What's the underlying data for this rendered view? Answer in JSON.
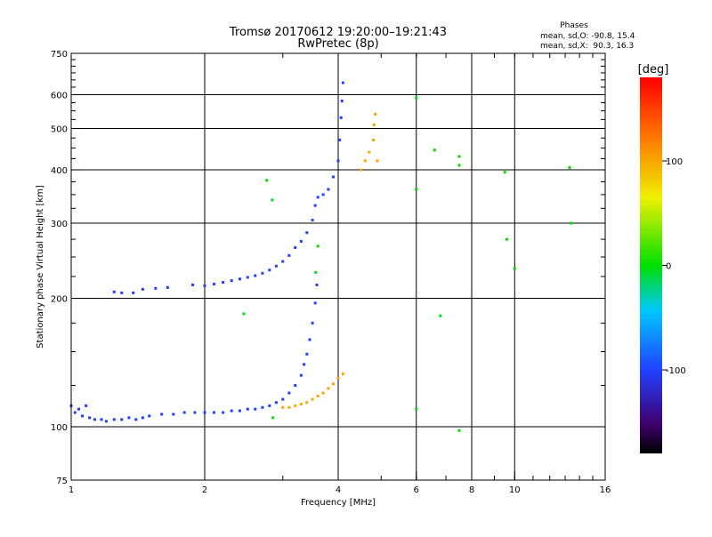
{
  "chart_data": {
    "type": "scatter",
    "title_line1": "Tromsø 20170612 19:20:00–19:21:43",
    "title_line2": "RwPretec (8p)",
    "xlabel": "Frequency [MHz]",
    "ylabel": "Stationary phase Virtual Height [km]",
    "xscale": "log",
    "yscale": "log",
    "xlim": [
      1,
      16
    ],
    "ylim": [
      75,
      750
    ],
    "x_tick_values": [
      1,
      2,
      4,
      6,
      8,
      10,
      16
    ],
    "x_tick_labels": [
      "1",
      "2",
      "4",
      "6",
      "8",
      "10",
      "16"
    ],
    "y_tick_values": [
      75,
      100,
      200,
      300,
      400,
      500,
      600,
      750
    ],
    "y_tick_labels": [
      "75",
      "100",
      "200",
      "300",
      "400",
      "500",
      "600",
      "750"
    ],
    "grid_x": [
      2,
      4,
      6,
      8,
      10
    ],
    "grid_y": [
      100,
      200,
      300,
      400,
      500,
      600
    ],
    "legend": {
      "heading": "Phases",
      "line_o": "mean, sd,O: -90.8, 15.4",
      "line_x": "mean, sd,X:  90.3, 16.3",
      "position": "top-right"
    },
    "colorbar": {
      "label": "[deg]",
      "range": [
        -180,
        180
      ],
      "tick_values": [
        100,
        0,
        -100
      ],
      "tick_labels": [
        "100",
        "0",
        "-100"
      ],
      "position": "right"
    },
    "series": [
      {
        "name": "O-mode E/F1 trace",
        "phase": -100,
        "points": [
          [
            1.0,
            112
          ],
          [
            1.02,
            108
          ],
          [
            1.04,
            110
          ],
          [
            1.06,
            106
          ],
          [
            1.08,
            112
          ],
          [
            1.1,
            105
          ],
          [
            1.13,
            104
          ],
          [
            1.17,
            104
          ],
          [
            1.2,
            103
          ],
          [
            1.25,
            104
          ],
          [
            1.3,
            104
          ],
          [
            1.35,
            105
          ],
          [
            1.4,
            104
          ],
          [
            1.45,
            105
          ],
          [
            1.5,
            106
          ],
          [
            1.6,
            107
          ],
          [
            1.7,
            107
          ],
          [
            1.8,
            108
          ],
          [
            1.9,
            108
          ],
          [
            2.0,
            108
          ],
          [
            2.1,
            108
          ],
          [
            2.2,
            108
          ],
          [
            2.3,
            109
          ],
          [
            2.4,
            109
          ],
          [
            2.5,
            110
          ],
          [
            2.6,
            110
          ],
          [
            2.7,
            111
          ],
          [
            2.8,
            112
          ],
          [
            2.9,
            114
          ],
          [
            3.0,
            116
          ],
          [
            3.1,
            120
          ],
          [
            3.2,
            125
          ],
          [
            3.3,
            132
          ],
          [
            3.35,
            140
          ],
          [
            3.4,
            148
          ],
          [
            3.45,
            160
          ],
          [
            3.5,
            175
          ],
          [
            3.55,
            195
          ],
          [
            3.58,
            215
          ]
        ]
      },
      {
        "name": "O-mode F2 trace",
        "phase": -100,
        "points": [
          [
            1.25,
            207
          ],
          [
            1.3,
            206
          ],
          [
            1.38,
            206
          ],
          [
            1.45,
            210
          ],
          [
            1.55,
            211
          ],
          [
            1.65,
            212
          ],
          [
            1.88,
            215
          ],
          [
            2.0,
            214
          ],
          [
            2.1,
            216
          ],
          [
            2.2,
            218
          ],
          [
            2.3,
            220
          ],
          [
            2.4,
            222
          ],
          [
            2.5,
            224
          ],
          [
            2.6,
            226
          ],
          [
            2.7,
            229
          ],
          [
            2.8,
            233
          ],
          [
            2.9,
            238
          ],
          [
            3.0,
            244
          ],
          [
            3.1,
            252
          ],
          [
            3.2,
            263
          ],
          [
            3.3,
            272
          ],
          [
            3.4,
            285
          ],
          [
            3.5,
            305
          ],
          [
            3.55,
            330
          ],
          [
            3.6,
            345
          ],
          [
            3.7,
            350
          ],
          [
            3.8,
            360
          ],
          [
            3.9,
            385
          ],
          [
            4.0,
            420
          ],
          [
            4.03,
            470
          ],
          [
            4.06,
            530
          ],
          [
            4.08,
            580
          ],
          [
            4.1,
            640
          ]
        ]
      },
      {
        "name": "X-mode trace",
        "phase": 100,
        "points": [
          [
            3.0,
            111
          ],
          [
            3.1,
            111
          ],
          [
            3.2,
            112
          ],
          [
            3.3,
            113
          ],
          [
            3.4,
            114
          ],
          [
            3.5,
            116
          ],
          [
            3.6,
            118
          ],
          [
            3.7,
            120
          ],
          [
            3.8,
            123
          ],
          [
            3.9,
            126
          ],
          [
            4.0,
            130
          ],
          [
            4.1,
            133
          ],
          [
            4.5,
            400
          ],
          [
            4.6,
            420
          ],
          [
            4.7,
            440
          ],
          [
            4.8,
            470
          ],
          [
            4.82,
            510
          ],
          [
            4.85,
            540
          ],
          [
            4.9,
            420
          ]
        ]
      },
      {
        "name": "scattered points",
        "phase": 0,
        "points": [
          [
            2.76,
            378
          ],
          [
            2.84,
            340
          ],
          [
            6.0,
            590
          ],
          [
            6.6,
            445
          ],
          [
            7.5,
            430
          ],
          [
            7.5,
            410
          ],
          [
            6.0,
            360
          ],
          [
            6.0,
            110
          ],
          [
            9.5,
            395
          ],
          [
            9.6,
            275
          ],
          [
            10.0,
            235
          ],
          [
            13.3,
            405
          ],
          [
            13.4,
            300
          ],
          [
            7.5,
            98
          ],
          [
            6.8,
            182
          ],
          [
            2.45,
            184
          ],
          [
            2.85,
            105
          ],
          [
            3.6,
            265
          ],
          [
            3.56,
            230
          ]
        ]
      }
    ]
  }
}
